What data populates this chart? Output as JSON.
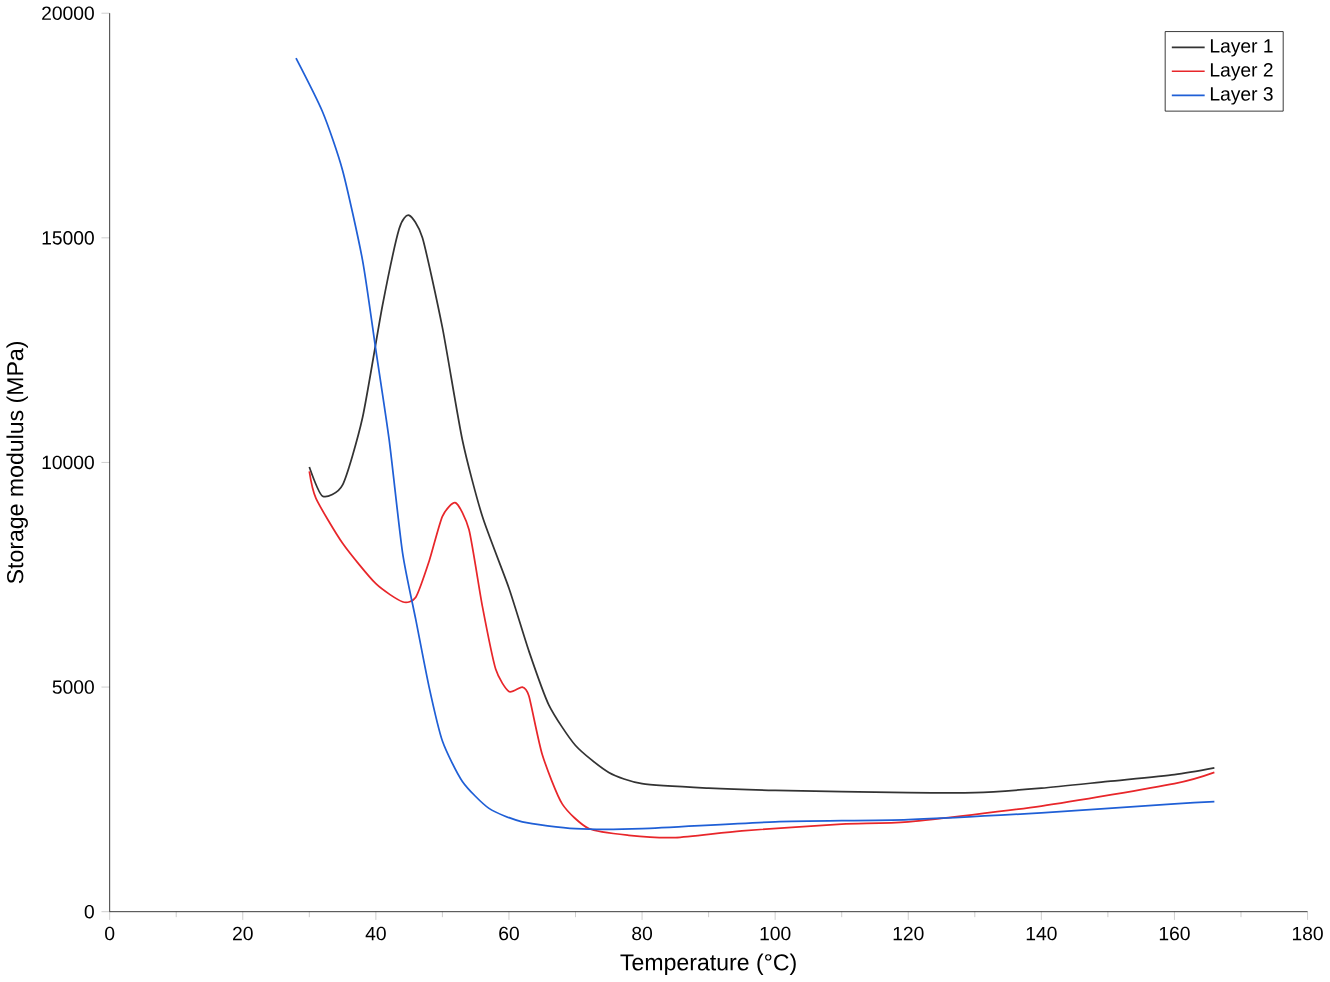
{
  "chart_data": {
    "type": "line",
    "xlabel": "Temperature (°C)",
    "ylabel": "Storage modulus (MPa)",
    "xlim": [
      0,
      180
    ],
    "xticks": [
      0,
      20,
      40,
      60,
      80,
      100,
      120,
      140,
      160,
      180
    ],
    "ylim": [
      0,
      20000
    ],
    "yticks": [
      0,
      5000,
      10000,
      15000,
      20000
    ],
    "legend": "top right",
    "grid": false,
    "marker": "none",
    "line_style": "solid",
    "series": [
      {
        "name": "Layer 1",
        "color": "#333333",
        "x": [
          30,
          32,
          35,
          38,
          41,
          43.5,
          45,
          47,
          50,
          53,
          56,
          60,
          63,
          66,
          70,
          75,
          80,
          90,
          100,
          120,
          130,
          140,
          150,
          160,
          166
        ],
        "values": [
          9900,
          9250,
          9500,
          11000,
          13500,
          15200,
          15500,
          15000,
          13000,
          10500,
          8800,
          7200,
          5800,
          4600,
          3700,
          3100,
          2850,
          2750,
          2700,
          2650,
          2650,
          2750,
          2900,
          3050,
          3200
        ]
      },
      {
        "name": "Layer 2",
        "color": "#e8262a",
        "x": [
          30,
          31,
          35,
          40,
          44,
          46,
          48,
          50,
          52,
          54,
          56,
          58,
          60,
          62,
          63,
          65,
          68,
          72,
          78,
          85,
          95,
          110,
          120,
          140,
          160,
          166
        ],
        "values": [
          9800,
          9200,
          8200,
          7300,
          6900,
          7000,
          7800,
          8800,
          9100,
          8500,
          6800,
          5400,
          4900,
          5000,
          4800,
          3500,
          2400,
          1850,
          1700,
          1650,
          1800,
          1950,
          2000,
          2350,
          2850,
          3100
        ]
      },
      {
        "name": "Layer 3",
        "color": "#1f5fd6",
        "x": [
          28,
          32,
          35,
          38,
          40,
          42,
          44,
          46,
          48,
          50,
          53,
          57,
          62,
          70,
          80,
          100,
          120,
          140,
          160,
          166
        ],
        "values": [
          19000,
          17800,
          16500,
          14500,
          12500,
          10500,
          8000,
          6500,
          5000,
          3800,
          2900,
          2300,
          2000,
          1850,
          1850,
          2000,
          2050,
          2200,
          2400,
          2450
        ]
      }
    ]
  }
}
